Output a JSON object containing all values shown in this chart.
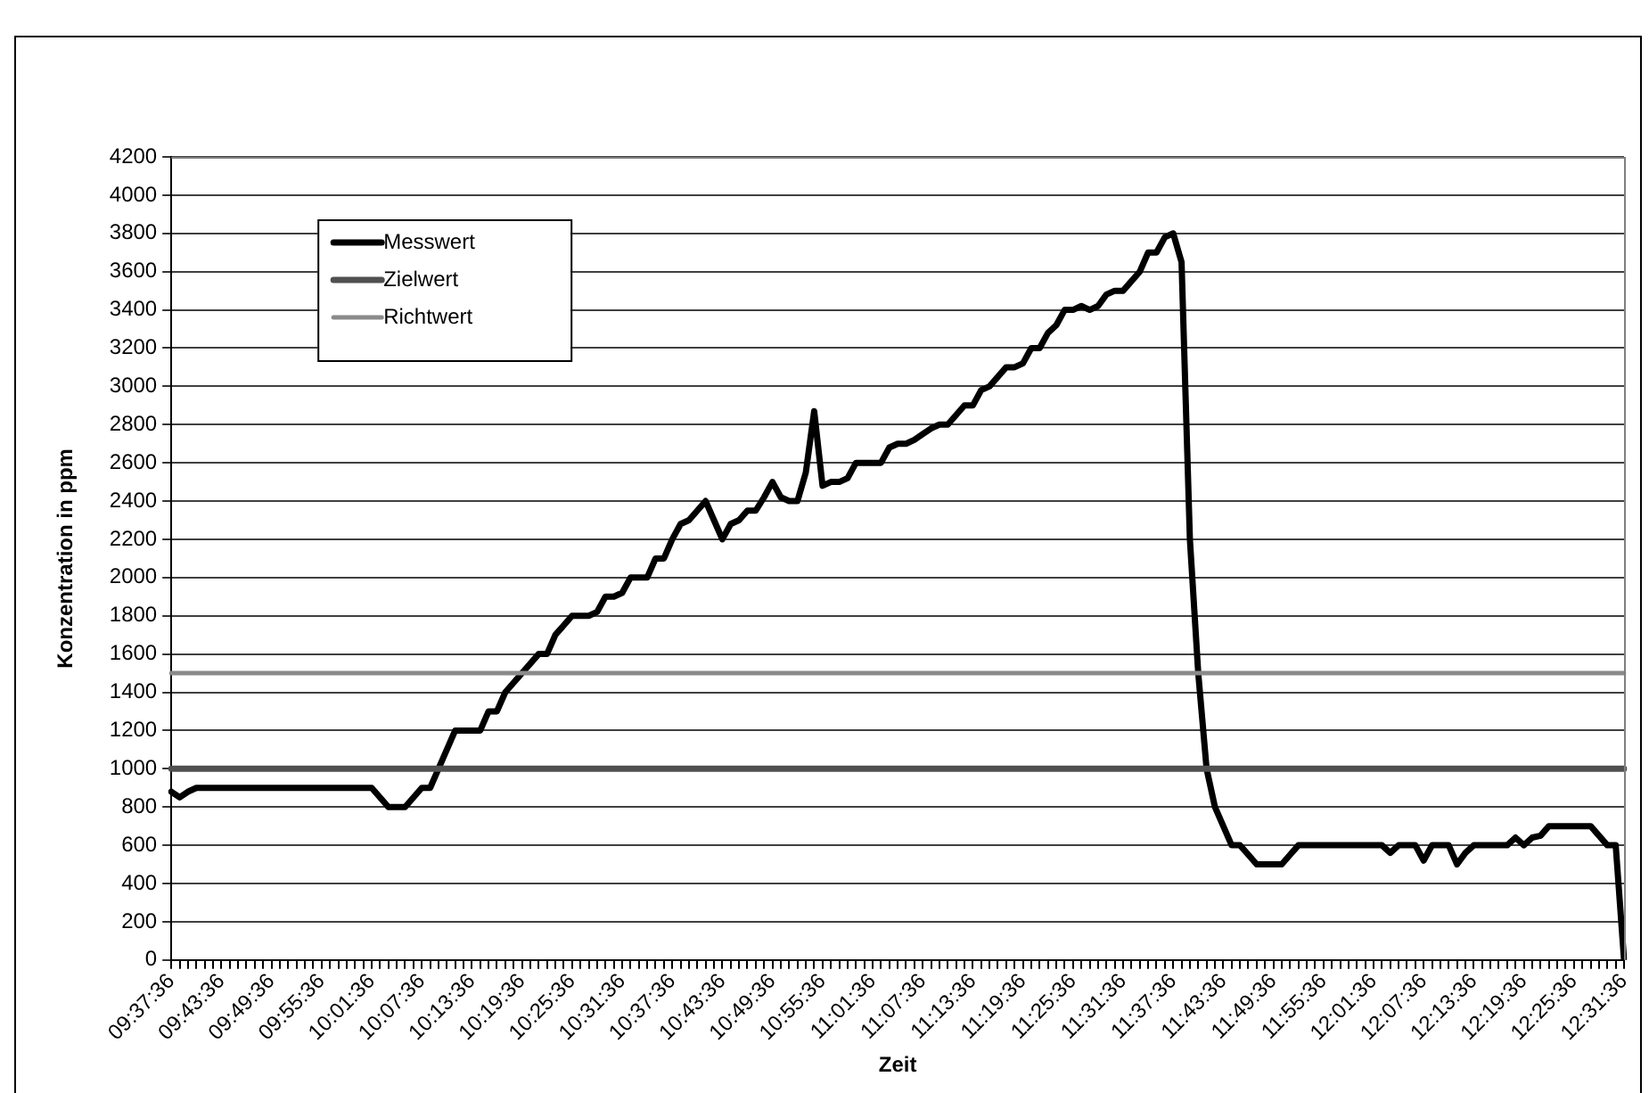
{
  "chart_data": {
    "type": "line",
    "xlabel": "Zeit",
    "ylabel": "Konzentration in ppm",
    "categories": [
      "09:37:36",
      null,
      null,
      null,
      null,
      null,
      "09:43:36",
      null,
      null,
      null,
      null,
      null,
      "09:49:36",
      null,
      null,
      null,
      null,
      null,
      "09:55:36",
      null,
      null,
      null,
      null,
      null,
      "10:01:36",
      null,
      null,
      null,
      null,
      null,
      "10:07:36",
      null,
      null,
      null,
      null,
      null,
      "10:13:36",
      null,
      null,
      null,
      null,
      null,
      "10:19:36",
      null,
      null,
      null,
      null,
      null,
      "10:25:36",
      null,
      null,
      null,
      null,
      null,
      "10:31:36",
      null,
      null,
      null,
      null,
      null,
      "10:37:36",
      null,
      null,
      null,
      null,
      null,
      "10:43:36",
      null,
      null,
      null,
      null,
      null,
      "10:49:36",
      null,
      null,
      null,
      null,
      null,
      "10:55:36",
      null,
      null,
      null,
      null,
      null,
      "11:01:36",
      null,
      null,
      null,
      null,
      null,
      "11:07:36",
      null,
      null,
      null,
      null,
      null,
      "11:13:36",
      null,
      null,
      null,
      null,
      null,
      "11:19:36",
      null,
      null,
      null,
      null,
      null,
      "11:25:36",
      null,
      null,
      null,
      null,
      null,
      "11:31:36",
      null,
      null,
      null,
      null,
      null,
      "11:37:36",
      null,
      null,
      null,
      null,
      null,
      "11:43:36",
      null,
      null,
      null,
      null,
      null,
      "11:49:36",
      null,
      null,
      null,
      null,
      null,
      "11:55:36",
      null,
      null,
      null,
      null,
      null,
      "12:01:36",
      null,
      null,
      null,
      null,
      null,
      "12:07:36",
      null,
      null,
      null,
      null,
      null,
      "12:13:36",
      null,
      null,
      null,
      null,
      null,
      "12:19:36",
      null,
      null,
      null,
      null,
      null,
      "12:25:36",
      null,
      null,
      null,
      null,
      null,
      "12:31:36"
    ],
    "series": [
      {
        "name": "Messwert",
        "color": "#000000",
        "values": [
          880,
          850,
          880,
          900,
          900,
          900,
          900,
          900,
          900,
          900,
          900,
          900,
          900,
          900,
          900,
          900,
          900,
          900,
          900,
          900,
          900,
          900,
          900,
          900,
          900,
          850,
          800,
          800,
          800,
          850,
          900,
          900,
          1000,
          1100,
          1200,
          1200,
          1200,
          1200,
          1300,
          1300,
          1400,
          1450,
          1500,
          1550,
          1600,
          1600,
          1700,
          1750,
          1800,
          1800,
          1800,
          1820,
          1900,
          1900,
          1920,
          2000,
          2000,
          2000,
          2100,
          2100,
          2200,
          2280,
          2300,
          2350,
          2400,
          2300,
          2200,
          2280,
          2300,
          2350,
          2350,
          2420,
          2500,
          2420,
          2400,
          2400,
          2550,
          2870,
          2480,
          2500,
          2500,
          2520,
          2600,
          2600,
          2600,
          2600,
          2680,
          2700,
          2700,
          2720,
          2750,
          2780,
          2800,
          2800,
          2850,
          2900,
          2900,
          2980,
          3000,
          3050,
          3100,
          3100,
          3120,
          3200,
          3200,
          3280,
          3320,
          3400,
          3400,
          3420,
          3400,
          3420,
          3480,
          3500,
          3500,
          3550,
          3600,
          3700,
          3700,
          3780,
          3800,
          3650,
          2200,
          1500,
          1000,
          800,
          700,
          600,
          600,
          550,
          500,
          500,
          500,
          500,
          550,
          600,
          600,
          600,
          600,
          600,
          600,
          600,
          600,
          600,
          600,
          600,
          560,
          600,
          600,
          600,
          520,
          600,
          600,
          600,
          500,
          560,
          600,
          600,
          600,
          600,
          600,
          640,
          600,
          640,
          650,
          700,
          700,
          700,
          700,
          700,
          700,
          650,
          600,
          600,
          0
        ]
      },
      {
        "name": "Zielwert",
        "color": "#505050",
        "values": [
          1000,
          1000,
          1000,
          1000,
          1000,
          1000,
          1000,
          1000,
          1000,
          1000,
          1000,
          1000,
          1000,
          1000,
          1000,
          1000,
          1000,
          1000,
          1000,
          1000,
          1000,
          1000,
          1000,
          1000,
          1000,
          1000,
          1000,
          1000,
          1000,
          1000,
          1000,
          1000,
          1000,
          1000,
          1000,
          1000,
          1000,
          1000,
          1000,
          1000,
          1000,
          1000,
          1000,
          1000,
          1000,
          1000,
          1000,
          1000,
          1000,
          1000,
          1000,
          1000,
          1000,
          1000,
          1000,
          1000,
          1000,
          1000,
          1000,
          1000,
          1000,
          1000,
          1000,
          1000,
          1000,
          1000,
          1000,
          1000,
          1000,
          1000,
          1000,
          1000,
          1000,
          1000,
          1000,
          1000,
          1000,
          1000,
          1000,
          1000,
          1000,
          1000,
          1000,
          1000,
          1000,
          1000,
          1000,
          1000,
          1000,
          1000,
          1000,
          1000,
          1000,
          1000,
          1000,
          1000,
          1000,
          1000,
          1000,
          1000,
          1000,
          1000,
          1000,
          1000,
          1000,
          1000,
          1000,
          1000,
          1000,
          1000,
          1000,
          1000,
          1000,
          1000,
          1000,
          1000,
          1000,
          1000,
          1000,
          1000,
          1000,
          1000,
          1000,
          1000,
          1000,
          1000,
          1000,
          1000,
          1000,
          1000,
          1000,
          1000,
          1000,
          1000,
          1000,
          1000,
          1000,
          1000,
          1000,
          1000,
          1000,
          1000,
          1000,
          1000,
          1000,
          1000,
          1000,
          1000,
          1000,
          1000,
          1000,
          1000,
          1000,
          1000,
          1000,
          1000,
          1000,
          1000,
          1000,
          1000,
          1000,
          1000,
          1000,
          1000,
          1000,
          1000,
          1000,
          1000,
          1000,
          1000,
          1000,
          1000,
          1000,
          1000,
          1000
        ]
      },
      {
        "name": "Richtwert",
        "color": "#8a8a8a",
        "values": [
          1500,
          1500,
          1500,
          1500,
          1500,
          1500,
          1500,
          1500,
          1500,
          1500,
          1500,
          1500,
          1500,
          1500,
          1500,
          1500,
          1500,
          1500,
          1500,
          1500,
          1500,
          1500,
          1500,
          1500,
          1500,
          1500,
          1500,
          1500,
          1500,
          1500,
          1500,
          1500,
          1500,
          1500,
          1500,
          1500,
          1500,
          1500,
          1500,
          1500,
          1500,
          1500,
          1500,
          1500,
          1500,
          1500,
          1500,
          1500,
          1500,
          1500,
          1500,
          1500,
          1500,
          1500,
          1500,
          1500,
          1500,
          1500,
          1500,
          1500,
          1500,
          1500,
          1500,
          1500,
          1500,
          1500,
          1500,
          1500,
          1500,
          1500,
          1500,
          1500,
          1500,
          1500,
          1500,
          1500,
          1500,
          1500,
          1500,
          1500,
          1500,
          1500,
          1500,
          1500,
          1500,
          1500,
          1500,
          1500,
          1500,
          1500,
          1500,
          1500,
          1500,
          1500,
          1500,
          1500,
          1500,
          1500,
          1500,
          1500,
          1500,
          1500,
          1500,
          1500,
          1500,
          1500,
          1500,
          1500,
          1500,
          1500,
          1500,
          1500,
          1500,
          1500,
          1500,
          1500,
          1500,
          1500,
          1500,
          1500,
          1500,
          1500,
          1500,
          1500,
          1500,
          1500,
          1500,
          1500,
          1500,
          1500,
          1500,
          1500,
          1500,
          1500,
          1500,
          1500,
          1500,
          1500,
          1500,
          1500,
          1500,
          1500,
          1500,
          1500,
          1500,
          1500,
          1500,
          1500,
          1500,
          1500,
          1500,
          1500,
          1500,
          1500,
          1500,
          1500,
          1500,
          1500,
          1500,
          1500,
          1500,
          1500,
          1500,
          1500,
          1500,
          1500,
          1500,
          1500,
          1500,
          1500,
          1500,
          1500,
          1500,
          1500,
          1500
        ]
      }
    ],
    "ylim": [
      0,
      4200
    ],
    "yticks": [
      0,
      200,
      400,
      600,
      800,
      1000,
      1200,
      1400,
      1600,
      1800,
      2000,
      2200,
      2400,
      2600,
      2800,
      3000,
      3200,
      3400,
      3600,
      3800,
      4000,
      4200
    ],
    "grid": "y",
    "legend": "top left",
    "marker": "none",
    "line_style": "solid"
  }
}
